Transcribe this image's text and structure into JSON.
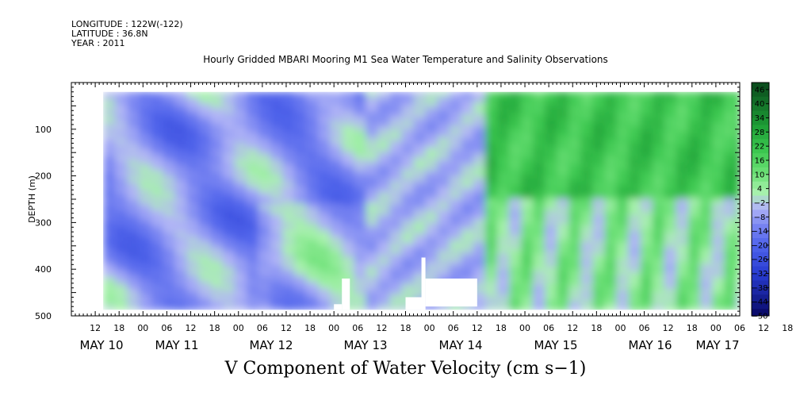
{
  "header": {
    "longitude": "LONGITUDE : 122W(-122)",
    "latitude": "LATITUDE : 36.8N",
    "year": "YEAR : 2011"
  },
  "chart_data": {
    "type": "heatmap",
    "title": "Hourly Gridded MBARI Mooring M1 Sea Water Temperature and Salinity Observations",
    "xlabel": "",
    "ylabel": "DEPTH (m)",
    "bottom_label": "V Component of Water Velocity (cm s−1)",
    "xlim_hours": [
      6,
      174
    ],
    "ylim": [
      500,
      0
    ],
    "y_ticks": [
      100,
      200,
      300,
      400,
      500
    ],
    "x_hour_ticks": [
      "12",
      "18",
      "00",
      "06",
      "12",
      "18",
      "00",
      "06",
      "12",
      "18",
      "00",
      "06",
      "12",
      "18",
      "00",
      "06",
      "12",
      "18",
      "00",
      "06",
      "12",
      "18",
      "00",
      "06",
      "12",
      "18",
      "00",
      "06",
      "12",
      "18",
      "00",
      "06"
    ],
    "x_day_labels": [
      "MAY 10",
      "MAY 11",
      "MAY 12",
      "MAY 13",
      "MAY 14",
      "MAY 15",
      "MAY 16",
      "MAY 17"
    ],
    "colorbar_levels": [
      46,
      40,
      34,
      28,
      22,
      16,
      10,
      4,
      -2,
      -8,
      -14,
      -20,
      -26,
      -32,
      -38,
      -44,
      -50
    ],
    "colorbar_range": [
      -50,
      49
    ],
    "colors": {
      "strong_positive": "#0a4a1c",
      "positive": "#36c44c",
      "weak_positive": "#aaf2b0",
      "weak_negative": "#b4b8f6",
      "negative": "#7c86f0",
      "strong_negative": "#0a0a70"
    },
    "field_summary": {
      "depth_range_m": [
        20,
        487
      ],
      "time_range_hours": [
        14,
        174
      ],
      "regions": [
        {
          "time_hours": [
            14,
            80
          ],
          "depth_m": [
            20,
            487
          ],
          "v_cm_s": -8,
          "description": "alternating weak positive and negative bands"
        },
        {
          "time_hours": [
            80,
            110
          ],
          "depth_m": [
            20,
            487
          ],
          "v_cm_s": -6,
          "description": "mostly weak negative with light green streaks"
        },
        {
          "time_hours": [
            110,
            174
          ],
          "depth_m": [
            20,
            240
          ],
          "v_cm_s": 22,
          "description": "strong positive (green)"
        },
        {
          "time_hours": [
            110,
            174
          ],
          "depth_m": [
            240,
            487
          ],
          "v_cm_s": 6,
          "description": "mixed positive and negative"
        }
      ],
      "data_gaps": [
        {
          "time_hours": [
            72,
            74
          ],
          "depth_m": [
            475,
            487
          ]
        },
        {
          "time_hours": [
            74,
            76
          ],
          "depth_m": [
            420,
            487
          ]
        },
        {
          "time_hours": [
            90,
            95
          ],
          "depth_m": [
            460,
            487
          ]
        },
        {
          "time_hours": [
            94,
            95
          ],
          "depth_m": [
            375,
            487
          ]
        },
        {
          "time_hours": [
            95,
            108
          ],
          "depth_m": [
            420,
            480
          ]
        }
      ]
    }
  }
}
